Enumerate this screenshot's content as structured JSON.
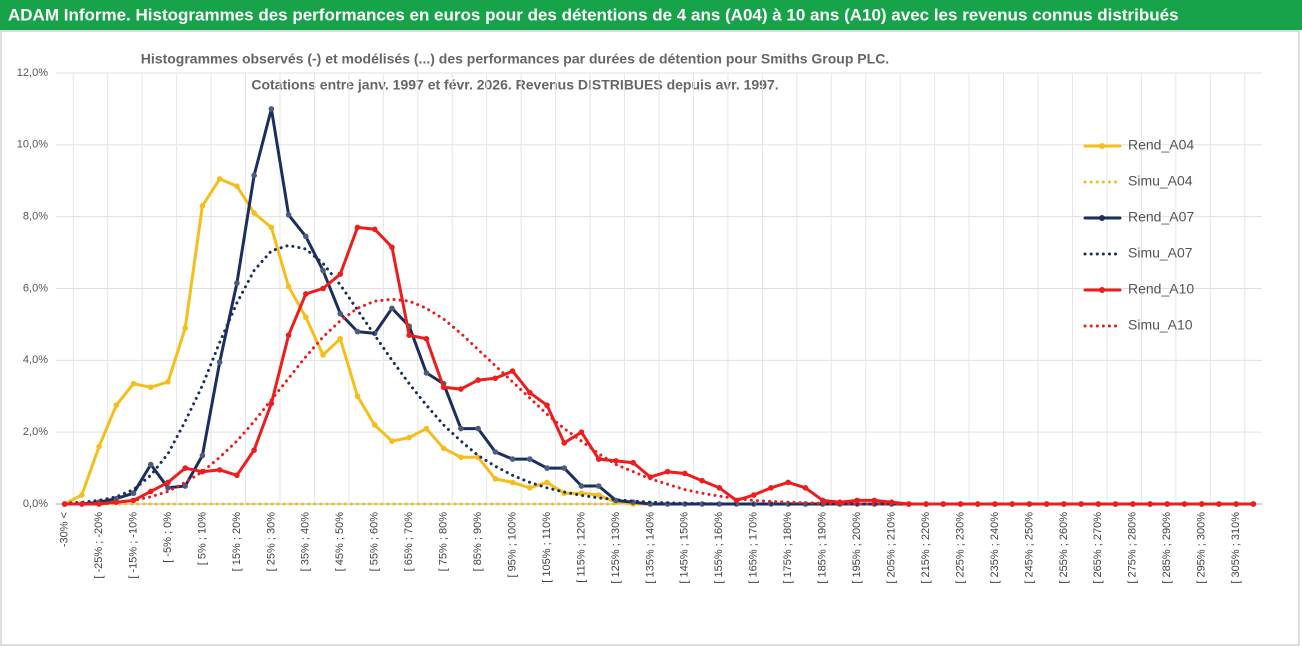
{
  "chart_data": {
    "type": "line",
    "title": "ADAM Informe. Histogrammes des performances en euros pour des détentions de 4 ans (A04) à 10 ans (A10) avec les revenus connus distribués",
    "subtitle": [
      "Histogrammes observés (-) et modélisés (...) des performances par durées de détention pour Smiths Group PLC.",
      "Cotations entre janv. 1997 et févr. 2026. Revenus DISTRIBUES depuis avr. 1997."
    ],
    "categories": [
      "-30% <",
      null,
      "[ -25% ; -20%",
      null,
      "[ -15% ; -10%",
      null,
      "[ -5% ; 0%",
      null,
      "[ 5% ; 10%",
      null,
      "[ 15% ; 20%",
      null,
      "[ 25% ; 30%",
      null,
      "[ 35% ; 40%",
      null,
      "[ 45% ; 50%",
      null,
      "[ 55% ; 60%",
      null,
      "[ 65% ; 70%",
      null,
      "[ 75% ; 80%",
      null,
      "[ 85% ; 90%",
      null,
      "[ 95% ; 100%",
      null,
      "[ 105% ; 110%",
      null,
      "[ 115% ; 120%",
      null,
      "[ 125% ; 130%",
      null,
      "[ 135% ; 140%",
      null,
      "[ 145% ; 150%",
      null,
      "[ 155% ; 160%",
      null,
      "[ 165% ; 170%",
      null,
      "[ 175% ; 180%",
      null,
      "[ 185% ; 190%",
      null,
      "[ 195% ; 200%",
      null,
      "[ 205% ; 210%",
      null,
      "[ 215% ; 220%",
      null,
      "[ 225% ; 230%",
      null,
      "[ 235% ; 240%",
      null,
      "[ 245% ; 250%",
      null,
      "[ 255% ; 260%",
      null,
      "[ 265% ; 270%",
      null,
      "[ 275% ; 280%",
      null,
      "[ 285% ; 290%",
      null,
      "[ 295% ; 300%",
      null,
      "[ 305% ; 310%",
      null
    ],
    "ylim": [
      0,
      12
    ],
    "yticks": [
      {
        "value": 0,
        "label": "0,0%"
      },
      {
        "value": 2,
        "label": "2,0%"
      },
      {
        "value": 4,
        "label": "4,0%"
      },
      {
        "value": 6,
        "label": "6,0%"
      },
      {
        "value": 8,
        "label": "8,0%"
      },
      {
        "value": 10,
        "label": "10,0%"
      },
      {
        "value": 12,
        "label": "12,0%"
      }
    ],
    "grid": true,
    "legend": "right",
    "series": [
      {
        "name": "Rend_A04",
        "color": "#f5be1a",
        "line_style": "solid",
        "markers": true,
        "values": [
          0,
          0.25,
          1.6,
          2.75,
          3.35,
          3.25,
          3.4,
          4.9,
          8.3,
          9.05,
          8.85,
          8.1,
          7.7,
          6.05,
          5.2,
          4.15,
          4.6,
          3.0,
          2.2,
          1.75,
          1.85,
          2.1,
          1.55,
          1.3,
          1.3,
          0.7,
          0.6,
          0.45,
          0.6,
          0.3,
          0.3,
          0.25,
          0.05,
          0,
          0,
          0,
          0,
          0,
          0,
          0,
          0,
          0,
          0,
          0,
          0,
          0,
          0,
          0,
          0,
          0,
          0,
          0,
          0,
          0,
          0,
          0,
          0,
          0,
          0,
          0,
          0,
          0,
          0,
          0,
          0,
          0,
          0,
          0,
          0,
          0
        ]
      },
      {
        "name": "Simu_A04",
        "color": "#f5be1a",
        "line_style": "dotted",
        "markers": false,
        "values": [
          0,
          0,
          0,
          0,
          0,
          0,
          0,
          0,
          0,
          0,
          0,
          0,
          0,
          0,
          0,
          0,
          0,
          0,
          0,
          0,
          0,
          0,
          0,
          0,
          0,
          0,
          0,
          0,
          0,
          0,
          0,
          0,
          0,
          null,
          null,
          null,
          null,
          null,
          null,
          null,
          null,
          null,
          null,
          null,
          null,
          null,
          null,
          null,
          null,
          null,
          null,
          null,
          null,
          null,
          null,
          null,
          null,
          null,
          null,
          null,
          null,
          null,
          null,
          null,
          null,
          null,
          null,
          null,
          null,
          null
        ]
      },
      {
        "name": "Rend_A07",
        "color": "#1a2f5e",
        "line_style": "solid",
        "markers": true,
        "values": [
          0,
          0,
          0.05,
          0.15,
          0.3,
          1.1,
          0.45,
          0.5,
          1.35,
          3.95,
          6.15,
          9.15,
          11.0,
          8.05,
          7.45,
          6.5,
          5.3,
          4.8,
          4.75,
          5.45,
          4.95,
          3.65,
          3.35,
          2.1,
          2.1,
          1.45,
          1.25,
          1.25,
          1.0,
          1.0,
          0.5,
          0.5,
          0.1,
          0.05,
          0,
          0,
          0,
          0,
          0,
          0,
          0,
          0,
          0,
          0,
          0,
          0,
          0,
          0,
          0,
          0,
          0,
          0,
          0,
          0,
          0,
          0,
          0,
          0,
          0,
          0,
          0,
          0,
          0,
          0,
          0,
          0,
          0,
          0,
          0,
          0
        ]
      },
      {
        "name": "Simu_A07",
        "color": "#1a2f5e",
        "line_style": "dotted",
        "markers": false,
        "values": [
          0.02,
          0.05,
          0.1,
          0.2,
          0.4,
          0.8,
          1.4,
          2.3,
          3.3,
          4.5,
          5.6,
          6.5,
          7.05,
          7.2,
          7.1,
          6.7,
          6.1,
          5.4,
          4.7,
          4.0,
          3.35,
          2.75,
          2.2,
          1.75,
          1.35,
          1.05,
          0.8,
          0.6,
          0.45,
          0.33,
          0.24,
          0.17,
          0.12,
          0.08,
          0.05,
          0.03,
          0.02,
          0.01,
          0,
          0,
          0,
          0,
          0,
          0,
          0,
          0,
          0,
          0,
          0,
          0,
          0,
          0,
          0,
          0,
          0,
          0,
          0,
          0,
          0,
          0,
          0,
          0,
          0,
          0,
          0,
          0,
          0,
          0,
          0,
          0
        ]
      },
      {
        "name": "Rend_A10",
        "color": "#ee1c1c",
        "line_style": "solid",
        "markers": true,
        "values": [
          0,
          0,
          0,
          0.05,
          0.1,
          0.35,
          0.6,
          1.0,
          0.9,
          0.95,
          0.8,
          1.5,
          2.8,
          4.7,
          5.85,
          6.0,
          6.4,
          7.7,
          7.65,
          7.15,
          4.7,
          4.6,
          3.25,
          3.2,
          3.45,
          3.5,
          3.7,
          3.1,
          2.75,
          1.7,
          2.0,
          1.25,
          1.2,
          1.15,
          0.75,
          0.9,
          0.85,
          0.65,
          0.45,
          0.1,
          0.25,
          0.45,
          0.6,
          0.45,
          0.1,
          0.05,
          0.1,
          0.1,
          0.05,
          0,
          0,
          0,
          0,
          0,
          0,
          0,
          0,
          0,
          0,
          0,
          0,
          0,
          0,
          0,
          0,
          0,
          0,
          0,
          0,
          0
        ]
      },
      {
        "name": "Simu_A10",
        "color": "#ee1c1c",
        "line_style": "dotted",
        "markers": false,
        "values": [
          0,
          0,
          0.02,
          0.05,
          0.1,
          0.2,
          0.35,
          0.6,
          0.9,
          1.3,
          1.75,
          2.3,
          2.9,
          3.5,
          4.1,
          4.65,
          5.1,
          5.45,
          5.65,
          5.7,
          5.65,
          5.45,
          5.15,
          4.75,
          4.3,
          3.85,
          3.4,
          2.95,
          2.5,
          2.1,
          1.75,
          1.4,
          1.1,
          0.9,
          0.7,
          0.55,
          0.4,
          0.3,
          0.22,
          0.15,
          0.1,
          0.07,
          0.05,
          0.03,
          0.02,
          0.01,
          0,
          0,
          0,
          0,
          0,
          0,
          0,
          0,
          0,
          0,
          0,
          0,
          0,
          0,
          0,
          0,
          0,
          0,
          0,
          0,
          0,
          0,
          0,
          0
        ]
      }
    ]
  }
}
